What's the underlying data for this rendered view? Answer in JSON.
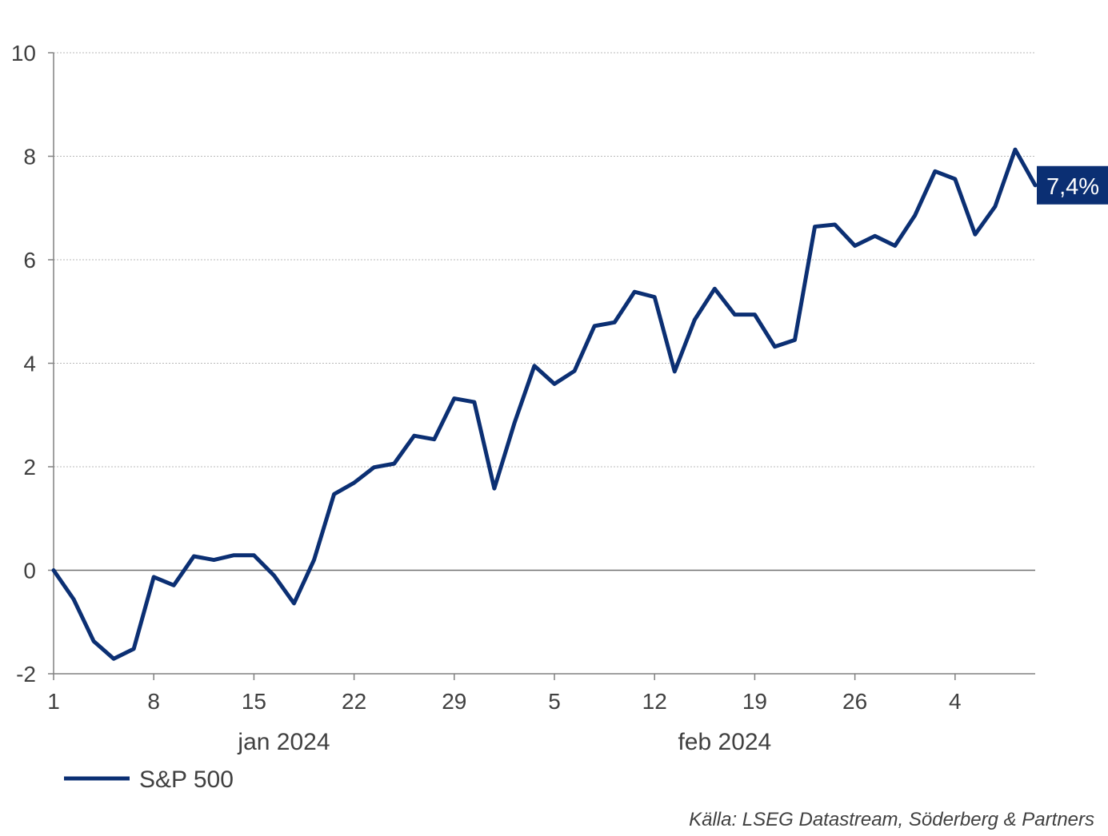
{
  "chart_data": {
    "type": "line",
    "ylim": [
      -2,
      10
    ],
    "yticks": [
      "-2",
      "0",
      "2",
      "4",
      "6",
      "8",
      "10"
    ],
    "grid": true,
    "x_ticks": [
      {
        "label": "1",
        "x": 0
      },
      {
        "label": "8",
        "x": 5
      },
      {
        "label": "15",
        "x": 10
      },
      {
        "label": "22",
        "x": 15
      },
      {
        "label": "29",
        "x": 20
      },
      {
        "label": "5",
        "x": 25
      },
      {
        "label": "12",
        "x": 30
      },
      {
        "label": "19",
        "x": 35
      },
      {
        "label": "26",
        "x": 40
      },
      {
        "label": "4",
        "x": 45
      }
    ],
    "month_labels": [
      {
        "label": "jan 2024",
        "x": 11.5
      },
      {
        "label": "feb 2024",
        "x": 33.5
      }
    ],
    "series": [
      {
        "name": "S&P 500",
        "color": "#0b2f73",
        "values": [
          0,
          -0.56,
          -1.37,
          -1.71,
          -1.52,
          -0.13,
          -0.29,
          0.27,
          0.2,
          0.29,
          0.29,
          -0.1,
          -0.64,
          0.2,
          1.47,
          1.69,
          1.99,
          2.06,
          2.6,
          2.53,
          3.32,
          3.25,
          1.58,
          2.84,
          3.95,
          3.6,
          3.85,
          4.72,
          4.79,
          5.38,
          5.28,
          3.84,
          4.84,
          5.44,
          4.94,
          4.94,
          4.32,
          4.45,
          6.64,
          6.68,
          6.27,
          6.46,
          6.27,
          6.86,
          7.71,
          7.56,
          6.49,
          7.03,
          8.13,
          7.44
        ]
      }
    ],
    "end_label": "7,4%",
    "legend": {
      "position": "bottom-left",
      "label": "S&P 500"
    },
    "source": "Källa: LSEG Datastream, Söderberg & Partners"
  }
}
